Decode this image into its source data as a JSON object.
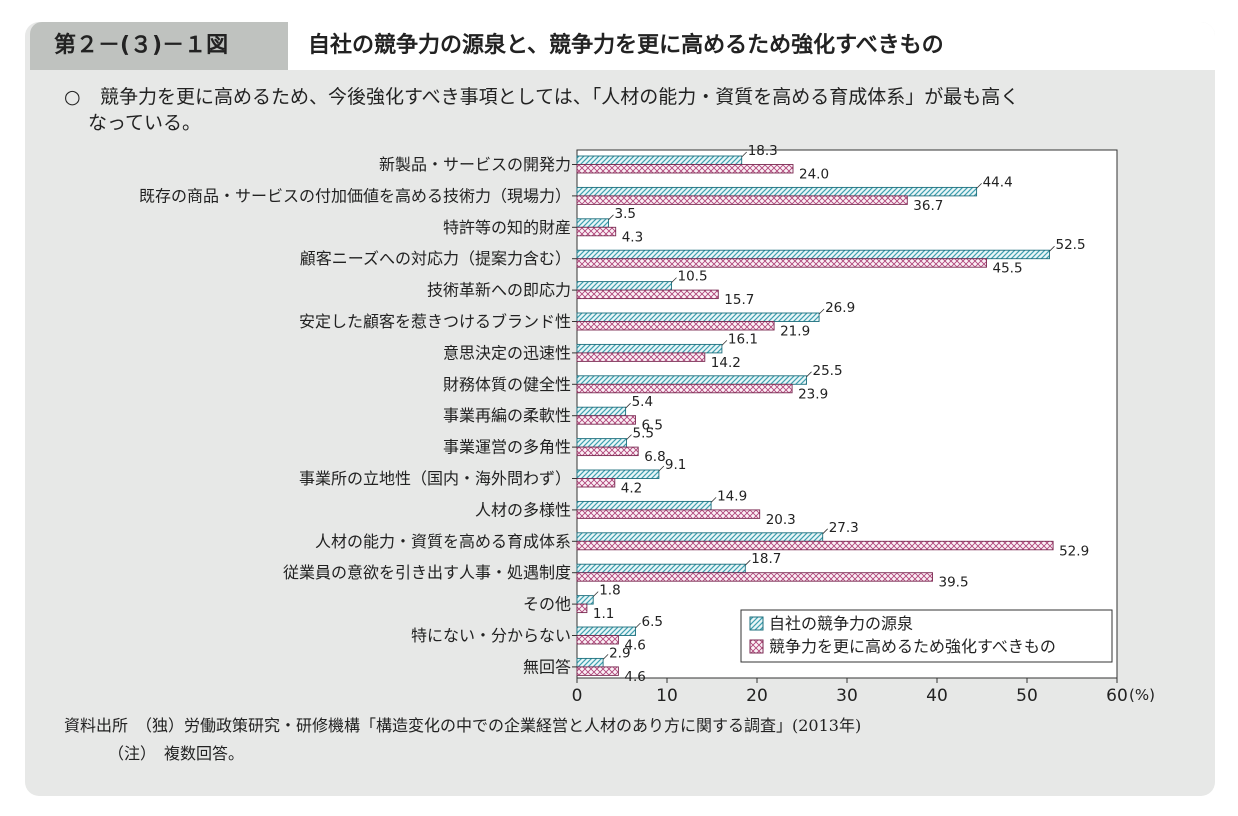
{
  "header": {
    "figure_number": "第２－(３)－１図",
    "title": "自社の競争力の源泉と、競争力を更に高めるため強化すべきもの"
  },
  "summary": {
    "bullet": "○",
    "text_line1": "競争力を更に高めるため、今後強化すべき事項としては、「人材の能力・資質を高める育成体系」が最も高く",
    "text_line2": "なっている。"
  },
  "chart_data": {
    "type": "bar",
    "orientation": "horizontal",
    "categories": [
      "新製品・サービスの開発力",
      "既存の商品・サービスの付加価値を高める技術力（現場力）",
      "特許等の知的財産",
      "顧客ニーズへの対応力（提案力含む）",
      "技術革新への即応力",
      "安定した顧客を惹きつけるブランド性",
      "意思決定の迅速性",
      "財務体質の健全性",
      "事業再編の柔軟性",
      "事業運営の多角性",
      "事業所の立地性（国内・海外問わず）",
      "人材の多様性",
      "人材の能力・資質を高める育成体系",
      "従業員の意欲を引き出す人事・処遇制度",
      "その他",
      "特にない・分からない",
      "無回答"
    ],
    "series": [
      {
        "name": "自社の競争力の源泉",
        "pattern": "diagonal",
        "color": "#3d9fb0",
        "values": [
          18.3,
          44.4,
          3.5,
          52.5,
          10.5,
          26.9,
          16.1,
          25.5,
          5.4,
          5.5,
          9.1,
          14.9,
          27.3,
          18.7,
          1.8,
          6.5,
          2.9
        ]
      },
      {
        "name": "競争力を更に高めるため強化すべきもの",
        "pattern": "crosshatch",
        "color": "#b0457a",
        "values": [
          24.0,
          36.7,
          4.3,
          45.5,
          15.7,
          21.9,
          14.2,
          23.9,
          6.5,
          6.8,
          4.2,
          20.3,
          52.9,
          39.5,
          1.1,
          4.6,
          4.6
        ]
      }
    ],
    "value_labels": [
      [
        "18.3",
        "44.4",
        "3.5",
        "52.5",
        "10.5",
        "26.9",
        "16.1",
        "25.5",
        "5.4",
        "5.5",
        "9.1",
        "14.9",
        "27.3",
        "18.7",
        "1.8",
        "6.5",
        "2.9"
      ],
      [
        "24.0",
        "36.7",
        "4.3",
        "45.5",
        "15.7",
        "21.9",
        "14.2",
        "23.9",
        "6.5",
        "6.8",
        "4.2",
        "20.3",
        "52.9",
        "39.5",
        "1.1",
        "4.6",
        "4.6"
      ]
    ],
    "xlim": [
      0,
      60
    ],
    "xticks": [
      "0",
      "10",
      "20",
      "30",
      "40",
      "50",
      "60"
    ],
    "unit_label": "(%)",
    "legend_position": "bottom-right"
  },
  "source": {
    "line1": "資料出所　（独）労働政策研究・研修機構「構造変化の中での企業経営と人材のあり方に関する調査」(2013年)",
    "line2": "（注）　複数回答。"
  }
}
